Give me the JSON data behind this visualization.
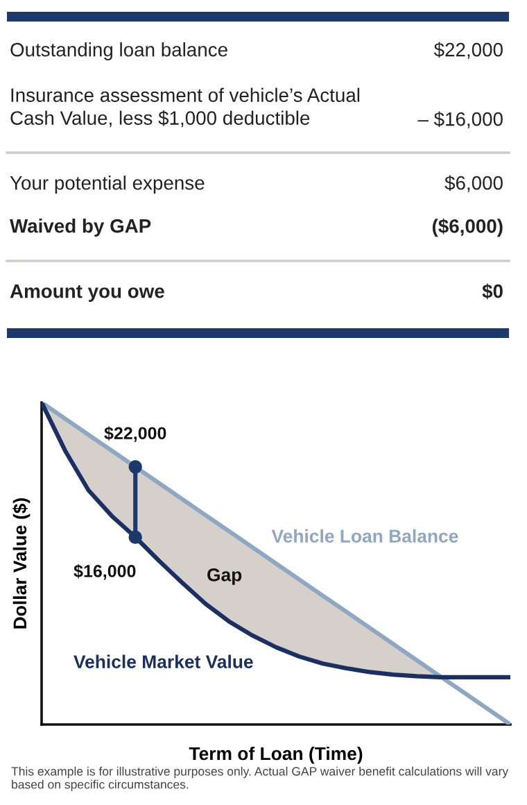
{
  "chart_data": [
    {
      "type": "other",
      "annotations": [
        "Outstanding loan balance",
        "$22,000",
        "Insurance assessment of vehicle’s Actual\nCash Value, less $1,000 deductible",
        "– $16,000",
        "Your potential expense",
        "$6,000",
        "Waived by GAP",
        "($6,000)",
        "Amount you owe",
        "$0"
      ]
    },
    {
      "type": "line",
      "xlabel": "Term of Loan (Time)",
      "ylabel": "Dollar Value ($)",
      "ylim": [
        0,
        27500
      ],
      "categories": [
        null,
        null,
        null,
        null,
        null,
        null,
        null,
        null,
        null,
        null,
        null,
        null,
        null,
        null,
        null,
        null,
        null,
        null,
        null,
        null,
        null
      ],
      "series": [
        {
          "name": "Vehicle Loan Balance",
          "color": "#8ea7c3",
          "values": [
            27500,
            26125,
            24750,
            23375,
            22000,
            20625,
            19250,
            17875,
            16500,
            15125,
            13750,
            12375,
            11000,
            9625,
            8250,
            6875,
            5500,
            4125,
            2750,
            1375,
            0
          ],
          "value_labels": [
            null,
            null,
            null,
            null,
            "$22,000",
            null,
            null,
            null,
            null,
            null,
            null,
            null,
            null,
            null,
            null,
            null,
            null,
            null,
            null,
            null,
            null
          ],
          "lower": [
            27500,
            23400,
            20000,
            17800,
            16000,
            14000,
            12100,
            10300,
            8800,
            7600,
            6600,
            5800,
            5200,
            4800,
            4480,
            4260,
            4125,
            4040,
            null,
            null,
            null
          ],
          "upper": [
            27500,
            26125,
            24750,
            23375,
            22000,
            20625,
            19250,
            17875,
            16500,
            15125,
            13750,
            12375,
            11000,
            9625,
            8250,
            6875,
            5500,
            4125,
            null,
            null,
            null
          ]
        },
        {
          "name": "Vehicle Market Value",
          "color": "#1b2f63",
          "values": [
            27500,
            23400,
            20000,
            17800,
            16000,
            14000,
            12100,
            10300,
            8800,
            7600,
            6600,
            5800,
            5200,
            4800,
            4480,
            4260,
            4125,
            4040,
            4040,
            4040,
            4040
          ],
          "value_labels": [
            null,
            null,
            null,
            null,
            "$16,000",
            null,
            null,
            null,
            null,
            null,
            null,
            null,
            null,
            null,
            null,
            null,
            null,
            null,
            null,
            null,
            null
          ]
        }
      ],
      "annotations": [
        "Gap",
        "This example is for illustrative purposes only. Actual GAP waiver benefit calculations will vary based on specific circumstances."
      ]
    }
  ]
}
